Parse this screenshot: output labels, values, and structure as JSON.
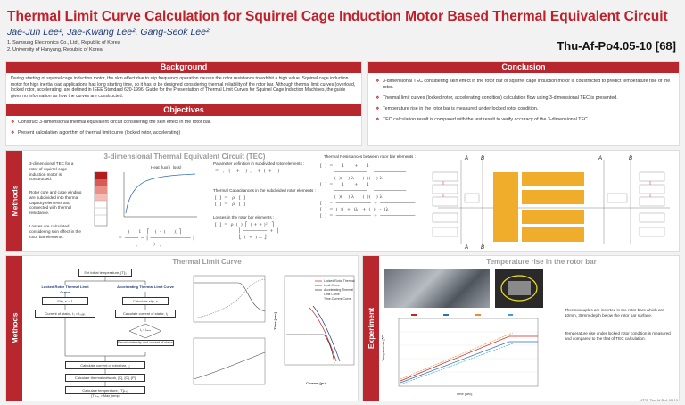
{
  "header": {
    "title": "Thermal Limit Curve Calculation for Squirrel Cage Induction Motor Based Thermal Equivalent Circuit",
    "authors": "Jae-Jun Lee¹, Jae-Kwang Lee², Gang-Seok Lee²",
    "affiliations": [
      "1.    Samsung Electronics Co., Ltd., Republic of Korea",
      "2.    University of Hanyang, Republic of Korea"
    ],
    "poster_id": "Thu-Af-Po4.05-10 [68]"
  },
  "background": {
    "heading": "Background",
    "text": "During starting of squirrel cage induction motor, the skin effect due to slip frequency operation causes the rotor resistance to exhibit a high value. Squirrel cage induction motor for high inertia load applications has long starting time, so it has to be designed considering thermal reliability of the rotor bar. Although thermal limit curves (overload, locked rotor, accelerating) are defined in IEEE Standard 620-1996, Guide for the Presentation of Thermal Limit Curves for Squirrel Cage Induction Machines, the guide gives no information as how the curves are constructed."
  },
  "objectives": {
    "heading": "Objectives",
    "items": [
      "Construct 3-dimensional thermal equivalent circuit considering the skin effect in the rotor bar.",
      "Present calculation algorithm of thermal limit curve (locked rotor, accelerating)"
    ]
  },
  "conclusion": {
    "heading": "Conclusion",
    "items": [
      "3-dimensional TEC considering skin effect in the rotor bar of squirrel cage induction motor is constructed to predict temperature rise of the rotor.",
      "Thermal limit curves (locked rotor, accelerating condition) calculation flow using 3-dimensional TEC is presented.",
      "Temperature rise in the rotor bar is measured under locked rotor condition.",
      "TEC calculation result is compared with the test result to verify accuracy of the 3-dimensional TEC."
    ]
  },
  "methods_top": {
    "tab": "Methods",
    "heading": "3-dimensional Thermal Equivalent Circuit (TEC)",
    "text1": "3-dimensional TEC for a rotor of squirrel cage induction motor is constructed.",
    "text2": "Rotor core and cage winding are subdivided into thermal capacity elements and connected with thermal resistance.",
    "text3": "Losses are calculated considering skin effect in the rotor bar elements.",
    "chart_title": "Heat flux(p_loss)",
    "param_label": "Parameter definition in subdivided rotor elements :",
    "cap_label": "Thermal Capacitances in the subdivided rotor elements :",
    "loss_label": "Losses in the rotor bar elements :",
    "res_label": "Thermal Resistances between rotor bar elements :"
  },
  "methods_bottom": {
    "tab": "Methods",
    "heading": "Thermal Limit Curve",
    "flow": [
      "Set initial temperature, [T]₀",
      "Locked Rotor Thermal Limit Curve",
      "Accelerating Thermal Limit Curve",
      "Slip, s = 1",
      "Calculate slip, s",
      "Current of stator, I₁ = Iₛₜₐᵣₜ",
      "Calculate current of stator, I₁",
      "I₁ = Iₘₐₓ",
      "Recalculate slip and current of stator",
      "Calculate current of rotor bar, I₂",
      "Calculate thermal network, [K], [C], {P}",
      "Calculate temperature, [T]ₙ₊₁",
      "[T]ₙ₊₁ > Max_temp"
    ],
    "chart_legend": [
      "Locked Rotor Thermal Limit Curve",
      "Accelerating Thermal Limit Curve",
      "Time-Current Curve"
    ],
    "xlabel": "Current [pu]",
    "ylabel": "Time [sec]"
  },
  "experiment": {
    "tab": "Experiment",
    "heading": "Temperature rise in the rotor bar",
    "text1": "Thermocouples are inserted in the rotor bars which are 10mm, 30mm depth below the rotor bar surface.",
    "text2": "Temperature rise under locked rotor condition is measured and compared to the that of TEC calculation.",
    "xlabel": "Time [sec]",
    "ylabel": "Temperature [℃]"
  },
  "footer": "MT25-Thu-Af-Po4.05-10",
  "colors": {
    "accent": "#b8262e",
    "title": "#c0202a",
    "authors": "#1f3a78"
  }
}
